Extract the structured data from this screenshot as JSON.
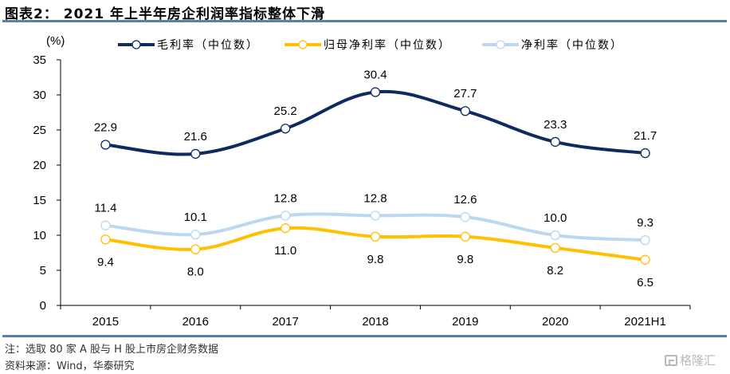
{
  "header": {
    "title": "图表2：  2021 年上半年房企利润率指标整体下滑"
  },
  "footer": {
    "note": "注：选取 80 家 A 股与 H 股上市房企财务数据",
    "source": "资料来源：Wind，华泰研究",
    "watermark": "格隆汇"
  },
  "chart_data": {
    "type": "line",
    "title": "2021 年上半年房企利润率指标整体下滑",
    "xlabel": "",
    "ylabel": "(%)",
    "categories": [
      "2015",
      "2016",
      "2017",
      "2018",
      "2019",
      "2020",
      "2021H1"
    ],
    "ylim": [
      0,
      35
    ],
    "yticks": [
      0,
      5,
      10,
      15,
      20,
      25,
      30,
      35
    ],
    "grid": false,
    "legend_position": "top",
    "smooth": true,
    "series": [
      {
        "name": "毛利率（中位数）",
        "color": "#0E2A5F",
        "values": [
          22.9,
          21.6,
          25.2,
          30.4,
          27.7,
          23.3,
          21.7
        ],
        "label_position": "above"
      },
      {
        "name": "归母净利率（中位数）",
        "color": "#FFC000",
        "values": [
          9.4,
          8.0,
          11.0,
          9.8,
          9.8,
          8.2,
          6.5
        ],
        "label_position": "below"
      },
      {
        "name": "净利率（中位数）",
        "color": "#BDD7EE",
        "values": [
          11.4,
          10.1,
          12.8,
          12.8,
          12.6,
          10.0,
          9.3
        ],
        "label_position": "above"
      }
    ]
  }
}
